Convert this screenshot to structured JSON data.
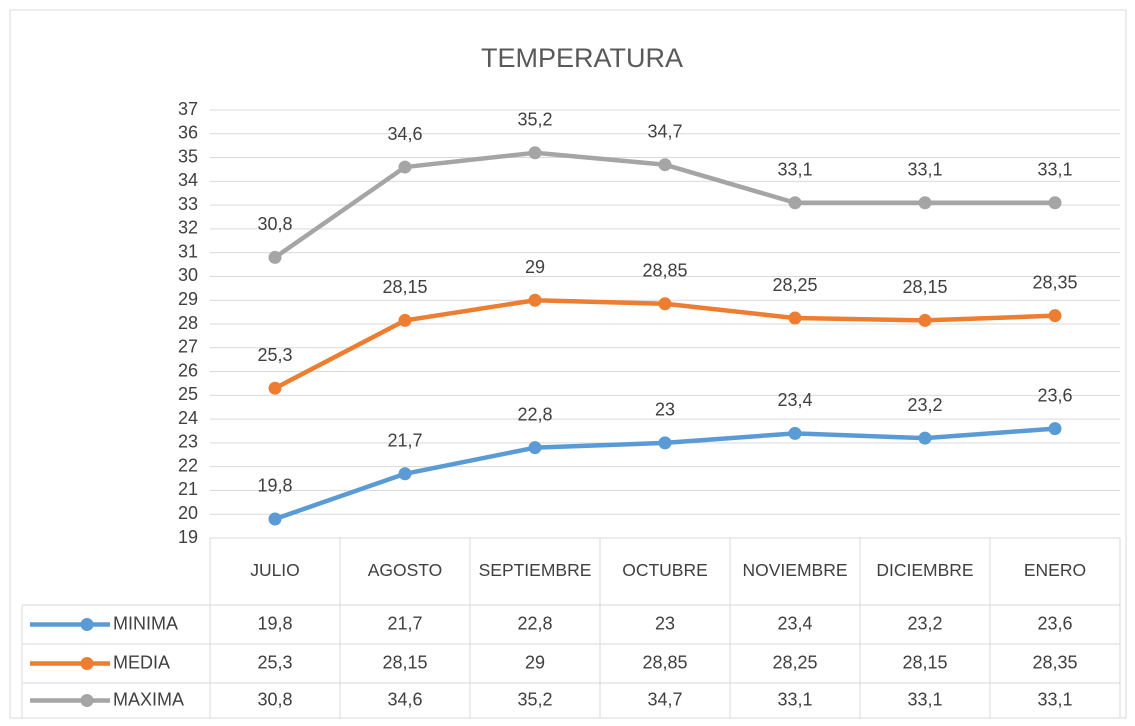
{
  "chart_data": {
    "type": "line",
    "title": "TEMPERATURA",
    "categories": [
      "JULIO",
      "AGOSTO",
      "SEPTIEMBRE",
      "OCTUBRE",
      "NOVIEMBRE",
      "DICIEMBRE",
      "ENERO"
    ],
    "series": [
      {
        "name": "MINIMA",
        "color": "#5b9bd5",
        "values": [
          19.8,
          21.7,
          22.8,
          23,
          23.4,
          23.2,
          23.6
        ],
        "value_labels": [
          "19,8",
          "21,7",
          "22,8",
          "23",
          "23,4",
          "23,2",
          "23,6"
        ]
      },
      {
        "name": "MEDIA",
        "color": "#ed7d31",
        "values": [
          25.3,
          28.15,
          29,
          28.85,
          28.25,
          28.15,
          28.35
        ],
        "value_labels": [
          "25,3",
          "28,15",
          "29",
          "28,85",
          "28,25",
          "28,15",
          "28,35"
        ]
      },
      {
        "name": "MAXIMA",
        "color": "#a5a5a5",
        "values": [
          30.8,
          34.6,
          35.2,
          34.7,
          33.1,
          33.1,
          33.1
        ],
        "value_labels": [
          "30,8",
          "34,6",
          "35,2",
          "34,7",
          "33,1",
          "33,1",
          "33,1"
        ]
      }
    ],
    "ylim": [
      19,
      37
    ],
    "yticks": [
      19,
      20,
      21,
      22,
      23,
      24,
      25,
      26,
      27,
      28,
      29,
      30,
      31,
      32,
      33,
      34,
      35,
      36,
      37
    ],
    "grid": true
  }
}
